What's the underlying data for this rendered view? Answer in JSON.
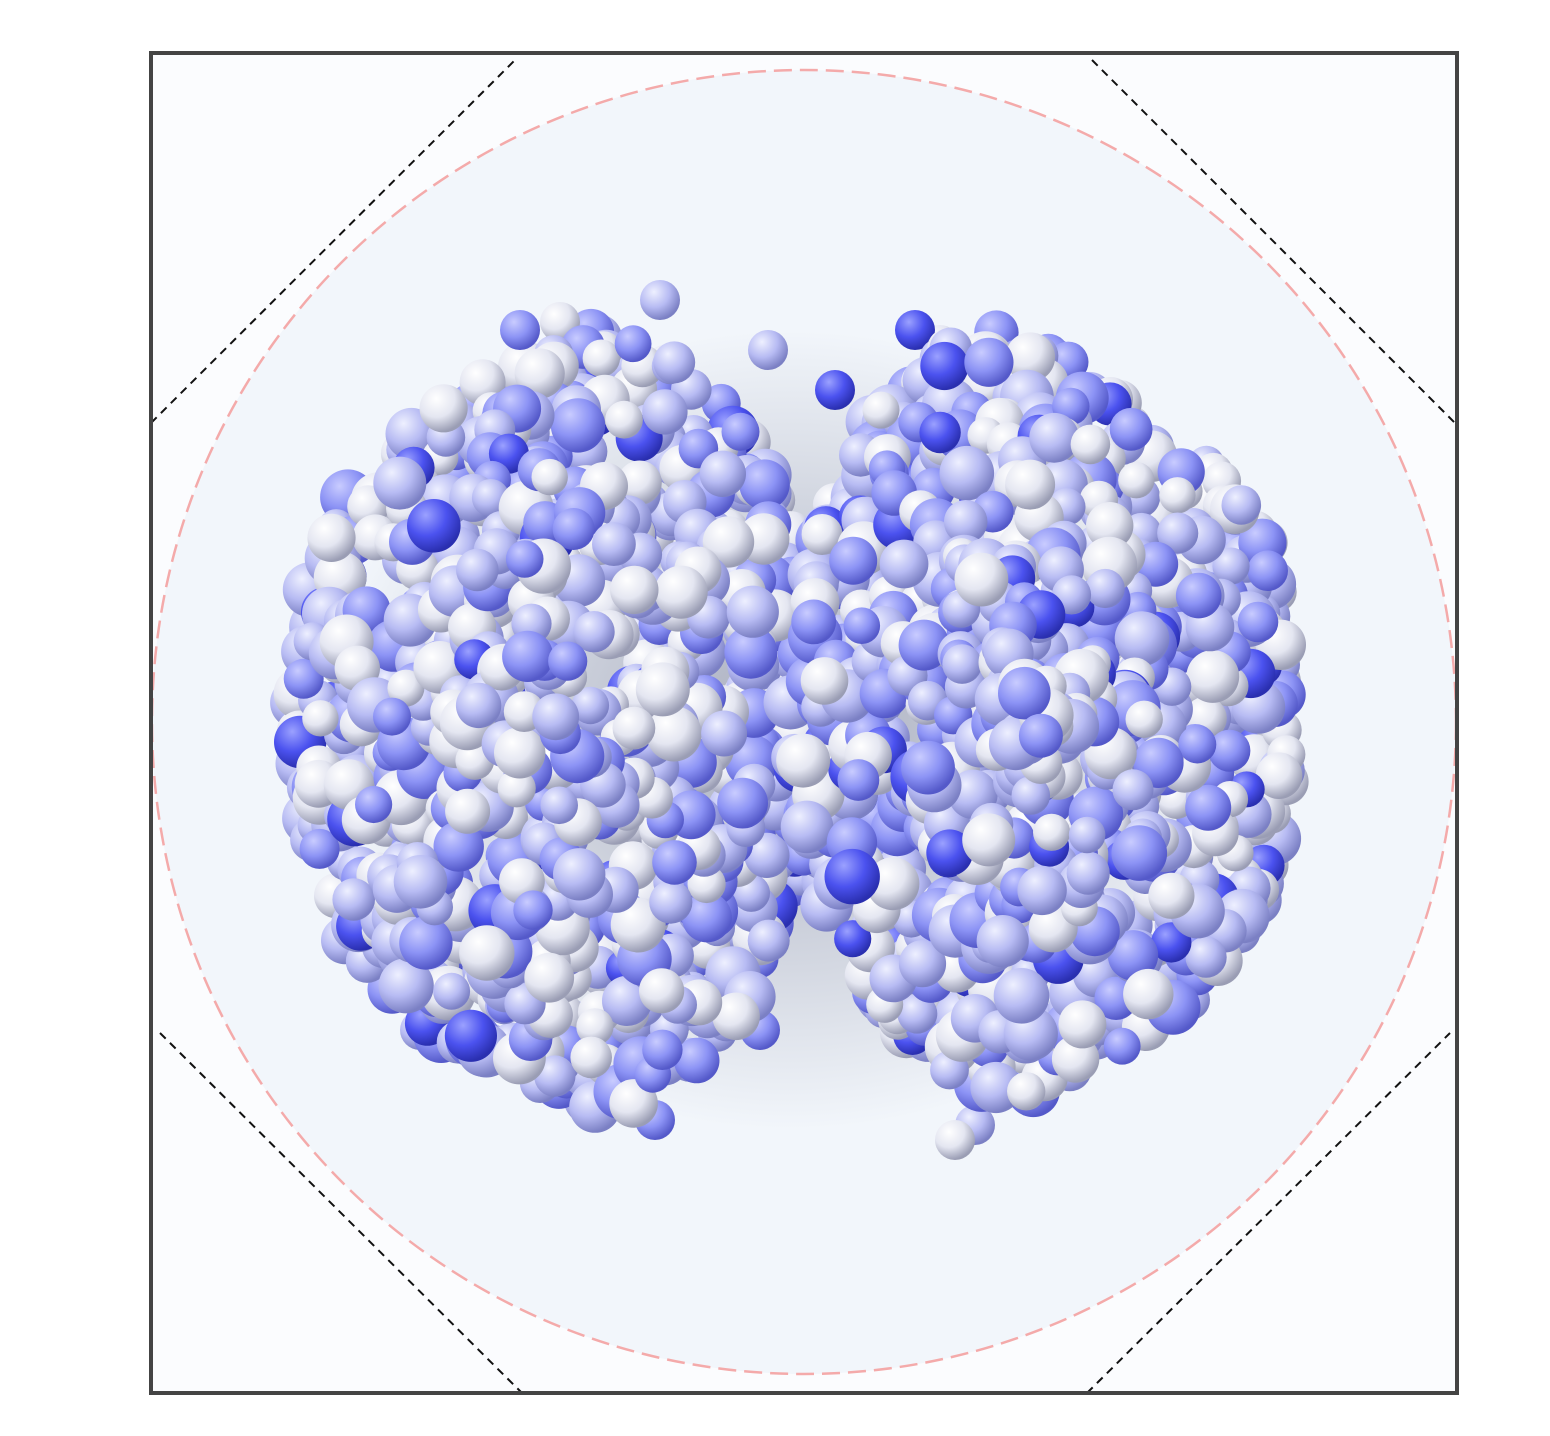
{
  "scene": {
    "subject": "protein-molecule",
    "representation": "space-filling",
    "colors": {
      "frame": "#444444",
      "panel_background": "#fbfcfe",
      "sphere_fill": "#f2f6fb",
      "sphere_border": "#f4aaaa",
      "clip_lines": "#111111",
      "atom_light": "#e6e8f2",
      "atom_mid": "#b8bcf2",
      "atom_strong": "#4a52f0"
    }
  }
}
